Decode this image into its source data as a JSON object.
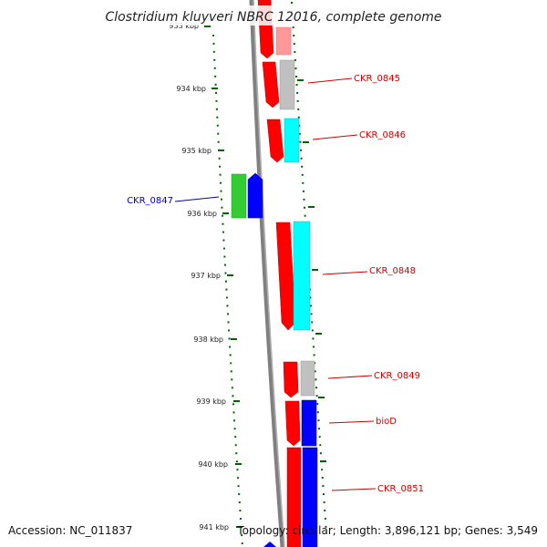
{
  "title": "Clostridium kluyveri NBRC 12016, complete genome",
  "footer": {
    "accession": "Accession: NC_011837",
    "topology": "Topology: circular; Length: 3,896,121 bp; Genes: 3,549"
  },
  "ticks": [
    "933 kbp",
    "934 kbp",
    "935 kbp",
    "936 kbp",
    "937 kbp",
    "938 kbp",
    "939 kbp",
    "940 kbp",
    "941 kbp"
  ],
  "gene_labels": [
    {
      "text": "CKR_0845",
      "color": "#cc0000"
    },
    {
      "text": "CKR_0846",
      "color": "#cc0000"
    },
    {
      "text": "CKR_0847",
      "color": "#0000cc"
    },
    {
      "text": "CKR_0848",
      "color": "#cc0000"
    },
    {
      "text": "CKR_0849",
      "color": "#cc0000"
    },
    {
      "text": "bioD",
      "color": "#cc0000"
    },
    {
      "text": "CKR_0851",
      "color": "#cc0000"
    }
  ],
  "colors": {
    "forward_cds": "#ff0000",
    "reverse_cds": "#0000ff",
    "gc_track": "#006400",
    "backbone": "#808080",
    "cyan_feature": "#00ffff",
    "grey_feature": "#c0c0c0",
    "green_feature": "#33cc33",
    "light_red_feature": "#ff9999"
  }
}
